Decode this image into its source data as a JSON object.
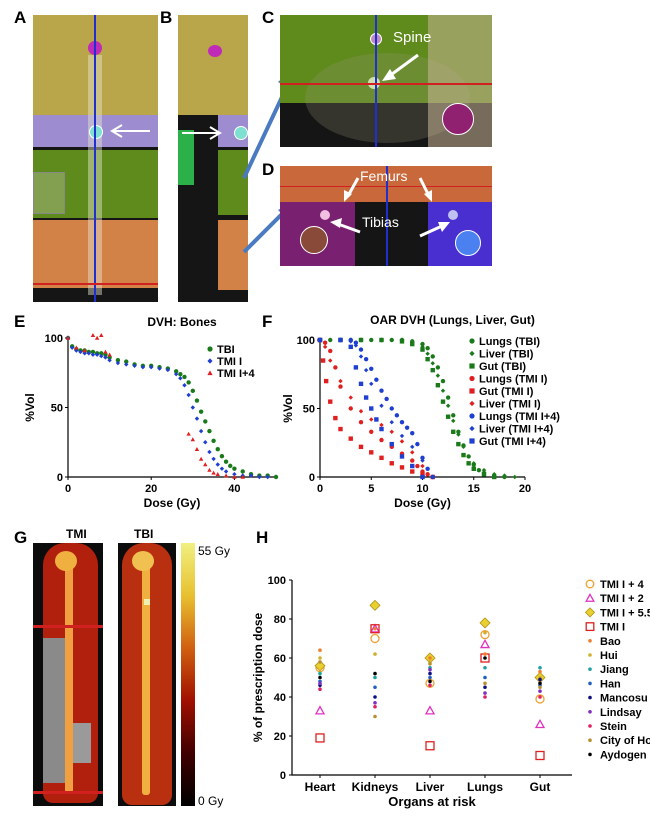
{
  "panels": {
    "A": "A",
    "B": "B",
    "C": "C",
    "D": "D",
    "E": "E",
    "F": "F",
    "G": "G",
    "H": "H"
  },
  "annotations": {
    "spine": "Spine",
    "femurs": "Femurs",
    "tibias": "Tibias"
  },
  "heatmap": {
    "label_tmi": "TMI",
    "label_tbi": "TBI",
    "scale_max": "55 Gy",
    "scale_min": "0 Gy"
  },
  "colors": {
    "yellow_region": "#b9a64a",
    "green_region": "#5f8a1c",
    "orange_region": "#d38247",
    "lavender_region": "#9d8dd0",
    "magenta_target": "#c02ab8",
    "red_dose": "#c41e12",
    "blue_region": "#4a2fd0"
  },
  "chart_data": [
    {
      "type": "scatter",
      "title": "DVH: Bones",
      "xlabel": "Dose (Gy)",
      "ylabel": "%Vol",
      "xlim": [
        0,
        50
      ],
      "ylim": [
        0,
        100
      ],
      "xticks": [
        0,
        20,
        40
      ],
      "yticks": [
        0,
        50,
        100
      ],
      "legend_position": "top-right",
      "series": [
        {
          "name": "TBI",
          "color": "#1a7a1a",
          "marker": "circle",
          "x": [
            0,
            1,
            2,
            3,
            4,
            5,
            6,
            7,
            8,
            9,
            10,
            12,
            14,
            16,
            18,
            20,
            22,
            24,
            26,
            27,
            28,
            29,
            30,
            31,
            32,
            33,
            34,
            35,
            36,
            37,
            38,
            39,
            40,
            42,
            44,
            46,
            48,
            50
          ],
          "y": [
            100,
            94,
            92,
            91,
            91,
            90,
            90,
            89,
            89,
            88,
            86,
            84,
            83,
            81,
            80,
            80,
            79,
            78,
            76,
            74,
            72,
            68,
            62,
            55,
            47,
            40,
            33,
            26,
            20,
            15,
            11,
            8,
            6,
            4,
            2,
            1,
            1,
            0
          ]
        },
        {
          "name": "TMI I",
          "color": "#1f3fd0",
          "marker": "diamond",
          "x": [
            0,
            1,
            2,
            3,
            4,
            5,
            6,
            7,
            8,
            9,
            10,
            12,
            14,
            16,
            18,
            20,
            22,
            24,
            26,
            27,
            28,
            29,
            30,
            31,
            32,
            33,
            34,
            35,
            36,
            37,
            38,
            40,
            42,
            44,
            46,
            48
          ],
          "y": [
            100,
            93,
            91,
            90,
            89,
            89,
            88,
            88,
            87,
            86,
            84,
            82,
            81,
            80,
            79,
            79,
            78,
            77,
            74,
            71,
            66,
            59,
            50,
            42,
            33,
            25,
            18,
            13,
            9,
            6,
            4,
            2,
            1,
            1,
            0,
            0
          ]
        },
        {
          "name": "TMI I+4",
          "color": "#e02020",
          "marker": "triangle",
          "x": [
            0,
            2,
            4,
            6,
            7,
            8,
            9,
            10,
            29,
            30,
            31,
            32,
            33,
            34,
            35,
            36,
            38,
            40,
            42
          ],
          "y": [
            100,
            93,
            91,
            102,
            100,
            102,
            90,
            88,
            31,
            27,
            20,
            13,
            9,
            5,
            3,
            2,
            1,
            0,
            0
          ]
        }
      ]
    },
    {
      "type": "scatter",
      "title": "OAR DVH (Lungs, Liver, Gut)",
      "xlabel": "Dose (Gy)",
      "ylabel": "%Vol",
      "xlim": [
        0,
        20
      ],
      "ylim": [
        0,
        100
      ],
      "xticks": [
        0,
        5,
        10,
        15,
        20
      ],
      "yticks": [
        0,
        50,
        100
      ],
      "legend_position": "right",
      "series": [
        {
          "name": "Lungs (TBI)",
          "color": "#1a7a1a",
          "marker": "circle",
          "x": [
            0,
            1,
            2,
            3,
            4,
            5,
            6,
            7,
            8,
            9,
            10,
            10.5,
            11,
            11.5,
            12,
            12.5,
            13,
            13.5,
            14,
            14.5,
            15,
            15.5,
            16,
            17,
            18
          ],
          "y": [
            100,
            100,
            100,
            100,
            100,
            100,
            100,
            100,
            100,
            99,
            97,
            94,
            88,
            80,
            70,
            58,
            45,
            33,
            23,
            15,
            9,
            5,
            3,
            1,
            0
          ]
        },
        {
          "name": "Liver (TBI)",
          "color": "#1a7a1a",
          "marker": "diamond",
          "x": [
            0,
            2,
            4,
            6,
            8,
            9,
            10,
            10.5,
            11,
            11.5,
            12,
            12.5,
            13,
            13.5,
            14,
            14.5,
            15,
            16,
            17,
            18,
            19
          ],
          "y": [
            100,
            100,
            100,
            100,
            100,
            98,
            95,
            90,
            83,
            74,
            63,
            52,
            41,
            31,
            22,
            15,
            10,
            5,
            2,
            1,
            0
          ]
        },
        {
          "name": "Gut (TBI)",
          "color": "#1a7a1a",
          "marker": "square",
          "x": [
            0,
            2,
            4,
            6,
            8,
            9,
            10,
            10.5,
            11,
            11.5,
            12,
            12.5,
            13,
            13.5,
            14,
            14.5,
            15,
            16,
            17
          ],
          "y": [
            100,
            100,
            100,
            100,
            99,
            97,
            93,
            86,
            78,
            67,
            55,
            44,
            33,
            24,
            16,
            10,
            6,
            2,
            0
          ]
        },
        {
          "name": "Lungs (TMI I)",
          "color": "#e02020",
          "marker": "circle",
          "x": [
            0,
            0.5,
            1,
            1.5,
            2,
            3,
            4,
            5,
            6,
            7,
            8,
            9,
            9.5,
            10,
            10.5,
            11
          ],
          "y": [
            100,
            98,
            92,
            80,
            66,
            50,
            40,
            33,
            27,
            22,
            17,
            12,
            8,
            4,
            2,
            0
          ]
        },
        {
          "name": "Gut (TMI I)",
          "color": "#e02020",
          "marker": "square",
          "x": [
            0,
            0.3,
            0.6,
            1,
            1.5,
            2,
            3,
            4,
            5,
            6,
            7,
            8,
            9,
            10,
            11
          ],
          "y": [
            100,
            85,
            70,
            55,
            43,
            35,
            28,
            22,
            18,
            14,
            10,
            7,
            4,
            2,
            0
          ]
        },
        {
          "name": "Liver (TMI I)",
          "color": "#e02020",
          "marker": "diamond",
          "x": [
            0,
            0.5,
            1,
            2,
            3,
            4,
            5,
            6,
            7,
            8,
            9,
            10,
            11
          ],
          "y": [
            100,
            95,
            85,
            70,
            58,
            48,
            42,
            38,
            33,
            26,
            18,
            8,
            0
          ]
        },
        {
          "name": "Lungs (TMI I+4)",
          "color": "#1f3fd0",
          "marker": "circle",
          "x": [
            0,
            2,
            3,
            3.5,
            4,
            4.5,
            5,
            5.5,
            6,
            6.5,
            7,
            7.5,
            8,
            8.5,
            9,
            9.5,
            10,
            10.5,
            11
          ],
          "y": [
            100,
            100,
            100,
            98,
            93,
            86,
            79,
            71,
            63,
            57,
            50,
            45,
            40,
            36,
            32,
            24,
            14,
            6,
            0
          ]
        },
        {
          "name": "Liver (TMI I+4)",
          "color": "#1f3fd0",
          "marker": "diamond",
          "x": [
            0,
            2,
            3,
            3.5,
            4,
            4.5,
            5,
            6,
            7,
            8,
            9,
            10,
            11
          ],
          "y": [
            100,
            100,
            99,
            96,
            88,
            78,
            68,
            52,
            40,
            30,
            22,
            12,
            0
          ]
        },
        {
          "name": "Gut (TMI I+4)",
          "color": "#1f3fd0",
          "marker": "square",
          "x": [
            0,
            2,
            3,
            3.5,
            4,
            4.5,
            5,
            5.5,
            6,
            7,
            8,
            9,
            10
          ],
          "y": [
            100,
            100,
            95,
            80,
            68,
            58,
            50,
            42,
            35,
            24,
            15,
            8,
            0
          ]
        }
      ]
    },
    {
      "type": "scatter",
      "title": "",
      "xlabel": "Organs at risk",
      "ylabel": "% of prescription dose",
      "categories": [
        "Heart",
        "Kidneys",
        "Liver",
        "Lungs",
        "Gut"
      ],
      "ylim": [
        0,
        100
      ],
      "yticks": [
        0,
        20,
        40,
        60,
        80,
        100
      ],
      "legend_position": "right",
      "series": [
        {
          "name": "TMI I + 4",
          "color": "#f0a030",
          "marker": "open-circle",
          "values": [
            55,
            70,
            47,
            72,
            39
          ]
        },
        {
          "name": "TMI I + 2",
          "color": "#e030c0",
          "marker": "open-triangle",
          "values": [
            33,
            75,
            33,
            67,
            26
          ]
        },
        {
          "name": "TMI I + 5.5",
          "color": "#e8d030",
          "marker": "filled-diamond",
          "values": [
            56,
            87,
            60,
            78,
            50
          ]
        },
        {
          "name": "TMI I",
          "color": "#e02020",
          "marker": "open-square",
          "values": [
            19,
            75,
            15,
            60,
            10
          ]
        },
        {
          "name": "Bao",
          "color": "#f08030",
          "marker": "dot",
          "values": [
            64,
            75,
            60,
            62,
            53
          ]
        },
        {
          "name": "Hui",
          "color": "#d0b030",
          "marker": "dot",
          "values": [
            60,
            62,
            58,
            73,
            50
          ]
        },
        {
          "name": "Jiang",
          "color": "#20a0a0",
          "marker": "dot",
          "values": [
            52,
            50,
            55,
            55,
            55
          ]
        },
        {
          "name": "Han",
          "color": "#2060c0",
          "marker": "dot",
          "values": [
            48,
            45,
            50,
            50,
            46
          ]
        },
        {
          "name": "Mancosu",
          "color": "#101080",
          "marker": "dot",
          "values": [
            46,
            40,
            52,
            45,
            49
          ]
        },
        {
          "name": "Lindsay",
          "color": "#8030c0",
          "marker": "dot",
          "values": [
            47,
            37,
            54,
            42,
            43
          ]
        },
        {
          "name": "Stein",
          "color": "#e02060",
          "marker": "dot",
          "values": [
            44,
            35,
            46,
            40,
            40
          ]
        },
        {
          "name": "City of Hope",
          "color": "#b89030",
          "marker": "dot",
          "values": [
            58,
            30,
            57,
            47,
            45
          ]
        },
        {
          "name": "Aydogen",
          "color": "#000000",
          "marker": "dot",
          "values": [
            50,
            52,
            48,
            60,
            47
          ]
        }
      ]
    }
  ]
}
